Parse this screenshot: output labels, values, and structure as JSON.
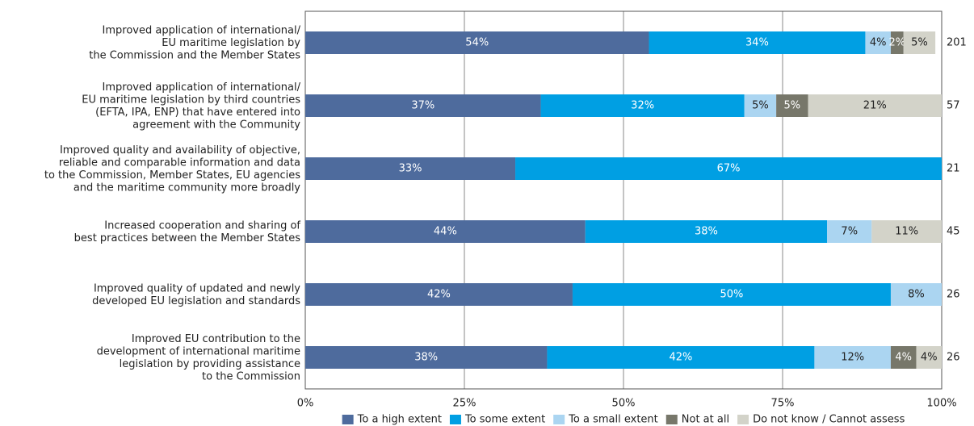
{
  "chart_data": {
    "type": "stacked-barh",
    "categories": [
      [
        "Improved application of international/",
        "EU maritime legislation by",
        "the Commission and the Member States"
      ],
      [
        "Improved application of international/",
        "EU maritime legislation by third countries",
        "(EFTA, IPA, ENP) that have entered into",
        "agreement with the Community"
      ],
      [
        "Improved quality and availability of objective,",
        "reliable and comparable information and data",
        "to the Commission, Member States, EU agencies",
        "and the maritime community more broadly"
      ],
      [
        "Increased cooperation and sharing of",
        "best practices between the Member States"
      ],
      [
        "Improved quality of updated and newly",
        "developed EU legislation and standards"
      ],
      [
        "Improved EU contribution to the",
        "development of international maritime",
        "legislation by providing assistance",
        "to the Commission"
      ]
    ],
    "series": [
      {
        "name": "To a high extent",
        "color": "#4e6b9d",
        "values": [
          54,
          37,
          33,
          44,
          42,
          38
        ],
        "value_labels": [
          "54%",
          "37%",
          "33%",
          "44%",
          "42%",
          "38%"
        ]
      },
      {
        "name": "To some extent",
        "color": "#009fe3",
        "values": [
          34,
          32,
          67,
          38,
          50,
          42
        ],
        "value_labels": [
          "34%",
          "32%",
          "67%",
          "38%",
          "50%",
          "42%"
        ]
      },
      {
        "name": "To a small extent",
        "color": "#abd5f1",
        "values": [
          4,
          5,
          null,
          7,
          8,
          12
        ],
        "value_labels": [
          "4%",
          "5%",
          null,
          "7%",
          "8%",
          "12%"
        ]
      },
      {
        "name": "Not at all",
        "color": "#77776a",
        "values": [
          2,
          5,
          null,
          null,
          null,
          4
        ],
        "value_labels": [
          "2%",
          "5%",
          null,
          null,
          null,
          "4%"
        ]
      },
      {
        "name": "Do not know / Cannot assess",
        "color": "#d3d3c9",
        "values": [
          5,
          21,
          null,
          11,
          null,
          4
        ],
        "value_labels": [
          "5%",
          "21%",
          null,
          "11%",
          null,
          "4%"
        ]
      }
    ],
    "respondents": [
      201,
      57,
      21,
      45,
      26,
      26
    ],
    "xlim": [
      0,
      100
    ],
    "xticks": [
      {
        "value": 0,
        "label": "0%"
      },
      {
        "value": 25,
        "label": "25%"
      },
      {
        "value": 50,
        "label": "50%"
      },
      {
        "value": 75,
        "label": "75%"
      },
      {
        "value": 100,
        "label": "100%"
      }
    ],
    "grid": true
  }
}
